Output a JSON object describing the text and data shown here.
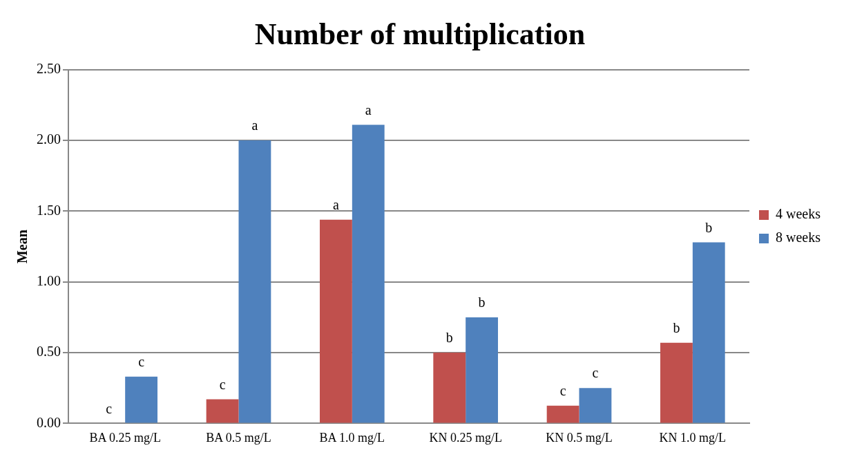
{
  "chart_data": {
    "type": "bar",
    "title": "Number of multiplication",
    "ylabel": "Mean",
    "categories": [
      "BA 0.25 mg/L",
      "BA 0.5 mg/L",
      "BA 1.0 mg/L",
      "KN 0.25 mg/L",
      "KN 0.5 mg/L",
      "KN 1.0 mg/L"
    ],
    "series": [
      {
        "name": "4 weeks",
        "color": "#c0504d",
        "values": [
          0,
          0.17,
          1.44,
          0.5,
          0.125,
          0.57
        ],
        "value_labels": [
          null,
          "c",
          "a",
          "b",
          "c",
          "b"
        ]
      },
      {
        "name": "8 weeks",
        "color": "#4f81bd",
        "values": [
          0.33,
          2.0,
          2.11,
          0.75,
          0.25,
          1.28
        ],
        "value_labels": [
          "c",
          "a",
          "a",
          "b",
          "c",
          "b"
        ]
      }
    ],
    "ylim": [
      0,
      2.5
    ],
    "yticks": [
      {
        "value": 0,
        "label": "0.00"
      },
      {
        "value": 0.5,
        "label": "0.50"
      },
      {
        "value": 1,
        "label": "1.00"
      },
      {
        "value": 1.5,
        "label": "1.50"
      },
      {
        "value": 2,
        "label": "2.00"
      },
      {
        "value": 2.5,
        "label": "2.50"
      }
    ],
    "annotations": [
      {
        "text": "c",
        "x": "BA 0.25 mg/L",
        "y": 0
      }
    ],
    "grid": "y",
    "legend": "right"
  }
}
